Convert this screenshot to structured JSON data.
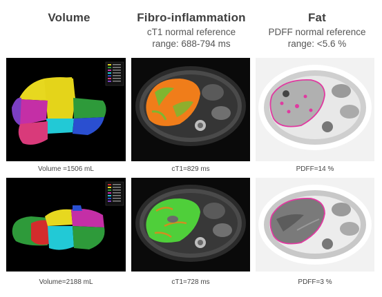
{
  "columns": [
    {
      "title": "Volume",
      "subtitle_line1": "",
      "subtitle_line2": ""
    },
    {
      "title": "Fibro-inflammation",
      "subtitle_line1": "cT1 normal reference",
      "subtitle_line2": "range: 688-794 ms"
    },
    {
      "title": "Fat",
      "subtitle_line1": "PDFF normal reference",
      "subtitle_line2": "range: <5.6 %"
    }
  ],
  "rows": [
    {
      "captions": [
        "Volume =1506 mL",
        "cT1=829 ms",
        "PDFF=14 %"
      ]
    },
    {
      "captions": [
        "Volume=2188 mL",
        "cT1=728 ms",
        "PDFF=3 %"
      ]
    }
  ],
  "colors": {
    "segment_yellow": "#e7d81f",
    "segment_green": "#2e9a3a",
    "segment_magenta": "#c42fa6",
    "segment_cyan": "#22c9d6",
    "segment_blue": "#2a4fd0",
    "segment_pink": "#d93a7a",
    "segment_purple": "#7b3fc3",
    "segment_red": "#d32c2c",
    "ct1_orange": "#f07d1a",
    "ct1_green": "#4fcf3a",
    "pdff_outline": "#e03aa0"
  }
}
